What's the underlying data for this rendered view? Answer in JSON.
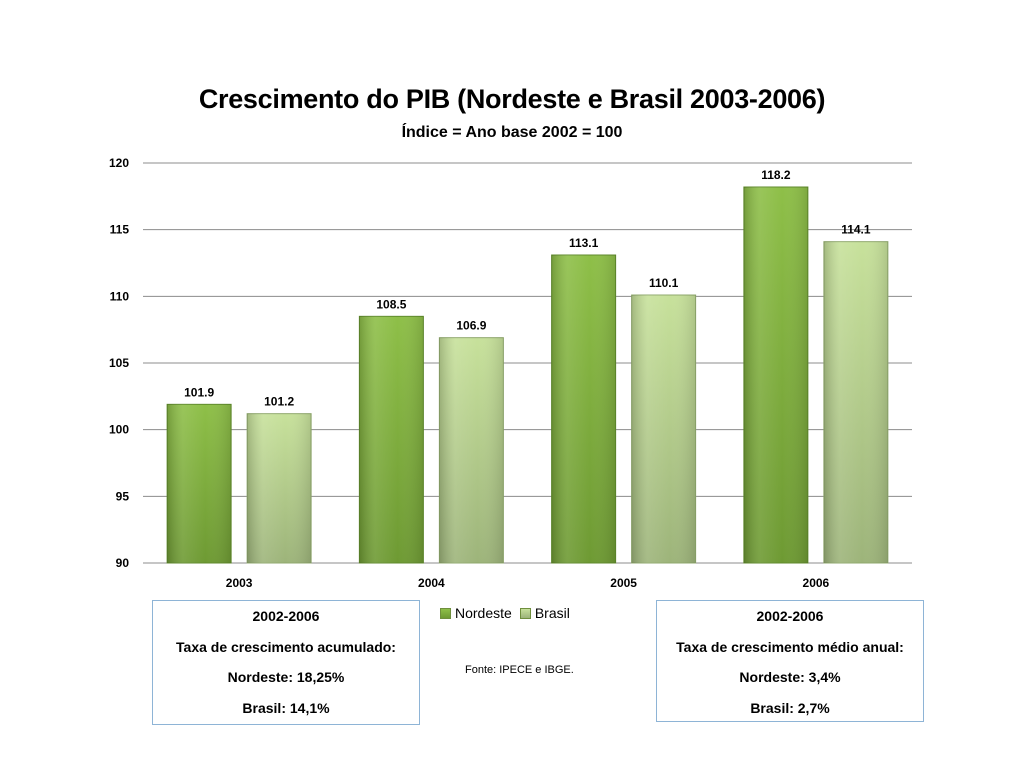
{
  "chart_data": {
    "type": "bar",
    "title": "Crescimento do PIB (Nordeste e Brasil 2003-2006)",
    "subtitle": "Índice = Ano base 2002 = 100",
    "categories": [
      "2003",
      "2004",
      "2005",
      "2006"
    ],
    "series": [
      {
        "name": "Nordeste",
        "values": [
          101.9,
          108.5,
          113.1,
          118.2
        ],
        "color": "#7fae3c"
      },
      {
        "name": "Brasil",
        "values": [
          101.2,
          106.9,
          110.1,
          114.1
        ],
        "color": "#b9d48e"
      }
    ],
    "data_labels": [
      [
        "101.9",
        "108.5",
        "113.1",
        "118.2"
      ],
      [
        "101.2",
        "106.9",
        "110.1",
        "114.1"
      ]
    ],
    "ylim": [
      90,
      120
    ],
    "yticks": [
      90,
      95,
      100,
      105,
      110,
      115,
      120
    ],
    "grid": true,
    "legend": "bottom"
  },
  "summary_left": {
    "period": "2002-2006",
    "heading": "Taxa de crescimento acumulado:",
    "nordeste": "Nordeste: 18,25%",
    "brasil": "Brasil: 14,1%"
  },
  "summary_right": {
    "period": "2002-2006",
    "heading": "Taxa de crescimento médio anual:",
    "nordeste": "Nordeste: 3,4%",
    "brasil": "Brasil: 2,7%"
  },
  "source": "Fonte: IPECE e IBGE."
}
